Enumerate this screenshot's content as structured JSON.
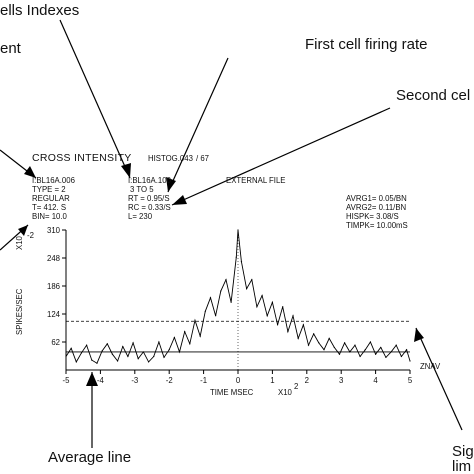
{
  "annotations": {
    "cells_indexes": "ells Indexes",
    "segment": "ent",
    "first_rate": "First cell firing rate",
    "second_rate": "Second cel",
    "average_line": "Average line",
    "significance": "Sig",
    "significance_limit": "lim"
  },
  "header": {
    "title": "CROSS INTENSITY",
    "histog": "HISTOG.043",
    "page": "/ 67",
    "cell1": "I:BL16A.006",
    "cell2": "I:BL16A.100",
    "external": "EXTERNAL FILE",
    "type": "TYPE = 2",
    "range": "3 TO 5",
    "regular": "REGULAR",
    "rt": "RT = 0.95/S",
    "t": "T=  412. S",
    "rc": "RC = 0.33/S",
    "bin": "BIN= 10.0",
    "l": "L= 230",
    "avrg1": "AVRG1=  0.05/BN",
    "avrg2": "AVRG2=  0.11/BN",
    "hispk": "HISPK=  3.08/S",
    "timpk": "TIMPK=  10.00mS"
  },
  "axes": {
    "ylabel": "SPIKES/SEC",
    "ymult": "X10",
    "ymult_exp": "-2",
    "xlabel": "TIME  MSEC",
    "xmult": "X10",
    "xmult_exp": "2",
    "znav": "ZNAV"
  },
  "chart_data": {
    "type": "line",
    "xlim": [
      -5,
      5
    ],
    "ylim": [
      0,
      310
    ],
    "x_ticks": [
      "-5",
      "-4",
      "-3",
      "-2",
      "-1",
      "0",
      "1",
      "2",
      "3",
      "4",
      "5"
    ],
    "y_ticks": [
      "310",
      "248",
      "186",
      "124",
      "62"
    ],
    "average_line": 40,
    "significance_limit": 108,
    "series": [
      {
        "x": [
          -5.0,
          -4.85,
          -4.7,
          -4.55,
          -4.4,
          -4.25,
          -4.1,
          -3.95,
          -3.8,
          -3.65,
          -3.5,
          -3.35,
          -3.2,
          -3.05,
          -2.9,
          -2.75,
          -2.6,
          -2.45,
          -2.3,
          -2.15,
          -2.0,
          -1.85,
          -1.7,
          -1.55,
          -1.4,
          -1.25,
          -1.1,
          -0.95,
          -0.8,
          -0.65,
          -0.5,
          -0.35,
          -0.2,
          -0.05,
          0.0,
          0.1,
          0.25,
          0.4,
          0.55,
          0.7,
          0.85,
          1.0,
          1.15,
          1.3,
          1.45,
          1.6,
          1.75,
          1.9,
          2.05,
          2.2,
          2.35,
          2.5,
          2.65,
          2.8,
          2.95,
          3.1,
          3.25,
          3.4,
          3.55,
          3.7,
          3.85,
          4.0,
          4.15,
          4.3,
          4.45,
          4.6,
          4.75,
          4.9,
          5.0
        ],
        "values": [
          30,
          48,
          18,
          38,
          55,
          22,
          15,
          42,
          58,
          35,
          20,
          52,
          30,
          60,
          25,
          40,
          18,
          30,
          62,
          28,
          45,
          72,
          40,
          85,
          58,
          110,
          75,
          130,
          160,
          120,
          175,
          200,
          150,
          250,
          310,
          240,
          180,
          200,
          140,
          165,
          120,
          150,
          100,
          140,
          85,
          120,
          70,
          100,
          55,
          80,
          60,
          45,
          70,
          50,
          35,
          60,
          40,
          55,
          30,
          45,
          62,
          35,
          50,
          28,
          40,
          55,
          30,
          45,
          20
        ]
      }
    ]
  }
}
